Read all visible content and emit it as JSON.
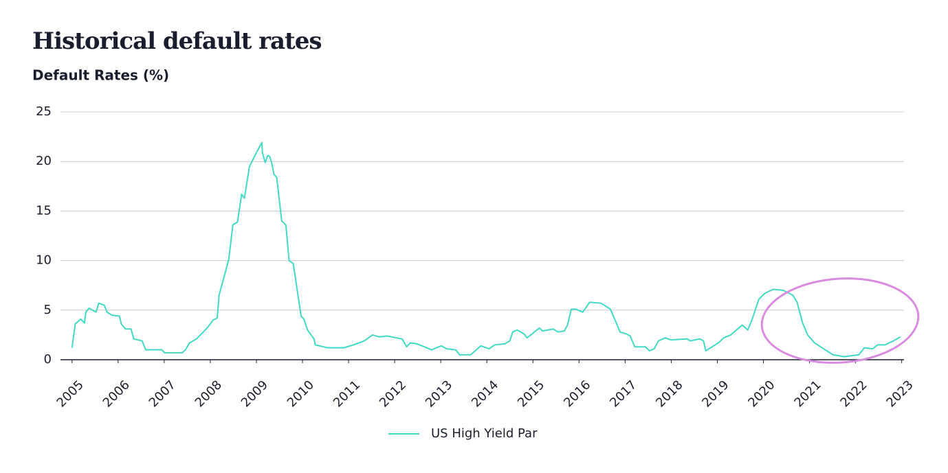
{
  "chart_data": {
    "type": "line",
    "title": "Historical default rates",
    "subtitle": "Default Rates (%)",
    "x": [
      2005.0,
      2005.07,
      2005.19,
      2005.27,
      2005.3,
      2005.37,
      2005.52,
      2005.58,
      2005.7,
      2005.76,
      2005.86,
      2006.03,
      2006.07,
      2006.16,
      2006.28,
      2006.34,
      2006.52,
      2006.6,
      2006.95,
      2007.01,
      2007.39,
      2007.46,
      2007.55,
      2007.7,
      2007.85,
      2007.95,
      2008.06,
      2008.15,
      2008.19,
      2008.4,
      2008.49,
      2008.59,
      2008.68,
      2008.74,
      2008.85,
      2008.98,
      2009.07,
      2009.12,
      2009.13,
      2009.19,
      2009.25,
      2009.29,
      2009.34,
      2009.38,
      2009.44,
      2009.55,
      2009.64,
      2009.71,
      2009.8,
      2009.97,
      2010.03,
      2010.11,
      2010.25,
      2010.28,
      2010.55,
      2010.71,
      2010.89,
      2011.11,
      2011.34,
      2011.52,
      2011.67,
      2011.83,
      2012.16,
      2012.26,
      2012.34,
      2012.49,
      2012.8,
      2013.01,
      2013.13,
      2013.32,
      2013.41,
      2013.65,
      2013.87,
      2014.05,
      2014.17,
      2014.39,
      2014.5,
      2014.56,
      2014.66,
      2014.81,
      2014.87,
      2015.14,
      2015.21,
      2015.44,
      2015.54,
      2015.68,
      2015.75,
      2015.83,
      2015.93,
      2016.08,
      2016.23,
      2016.48,
      2016.68,
      2016.81,
      2016.89,
      2017.03,
      2017.11,
      2017.21,
      2017.44,
      2017.53,
      2017.63,
      2017.72,
      2017.87,
      2017.99,
      2018.35,
      2018.41,
      2018.62,
      2018.7,
      2018.75,
      2019.02,
      2019.14,
      2019.29,
      2019.54,
      2019.66,
      2019.75,
      2019.9,
      2020.03,
      2020.21,
      2020.43,
      2020.64,
      2020.73,
      2020.85,
      2020.96,
      2021.11,
      2021.34,
      2021.51,
      2021.75,
      2022.07,
      2022.19,
      2022.37,
      2022.48,
      2022.64,
      2022.82,
      2022.97
    ],
    "series": [
      {
        "name": "US High Yield Par",
        "color": "#40d9c3",
        "values": [
          1.2,
          3.6,
          4.1,
          3.7,
          4.8,
          5.2,
          4.8,
          5.7,
          5.5,
          4.8,
          4.5,
          4.4,
          3.6,
          3.1,
          3.1,
          2.1,
          1.9,
          1.0,
          1.0,
          0.7,
          0.7,
          1.0,
          1.7,
          2.1,
          2.8,
          3.3,
          4.0,
          4.2,
          6.5,
          10.1,
          13.6,
          13.9,
          16.7,
          16.3,
          19.5,
          20.7,
          21.5,
          21.9,
          20.9,
          19.9,
          20.6,
          20.5,
          19.7,
          18.7,
          18.4,
          14.0,
          13.6,
          10.0,
          9.7,
          4.4,
          4.1,
          3.0,
          2.1,
          1.5,
          1.2,
          1.2,
          1.2,
          1.5,
          1.9,
          2.5,
          2.3,
          2.4,
          2.1,
          1.3,
          1.7,
          1.6,
          1.0,
          1.4,
          1.1,
          1.0,
          0.5,
          0.5,
          1.4,
          1.1,
          1.5,
          1.6,
          1.9,
          2.8,
          3.0,
          2.6,
          2.2,
          3.2,
          2.9,
          3.1,
          2.8,
          2.9,
          3.5,
          5.1,
          5.1,
          4.8,
          5.8,
          5.7,
          5.1,
          3.7,
          2.8,
          2.6,
          2.4,
          1.3,
          1.3,
          0.9,
          1.1,
          1.9,
          2.2,
          2.0,
          2.1,
          1.9,
          2.1,
          1.9,
          0.9,
          1.7,
          2.2,
          2.5,
          3.5,
          3.0,
          4.0,
          6.1,
          6.7,
          7.1,
          7.0,
          6.5,
          5.8,
          3.7,
          2.5,
          1.7,
          1.0,
          0.5,
          0.3,
          0.5,
          1.2,
          1.1,
          1.5,
          1.5,
          1.9,
          2.3
        ]
      }
    ],
    "xlim": [
      2004.75,
      2023.05
    ],
    "xticks": [
      2005,
      2006,
      2007,
      2008,
      2009,
      2010,
      2011,
      2012,
      2013,
      2014,
      2015,
      2016,
      2017,
      2018,
      2019,
      2020,
      2021,
      2022,
      2023
    ],
    "ylim": [
      0,
      25
    ],
    "yticks": [
      0,
      5,
      10,
      15,
      20,
      25
    ],
    "grid": true,
    "legend": "bottom"
  }
}
